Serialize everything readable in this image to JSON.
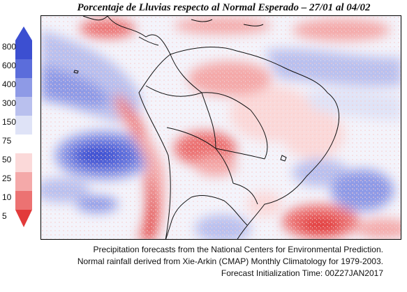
{
  "title": "Porcentaje de Lluvias respecto al Normal Esperado – 27/01 al 04/02",
  "legend": {
    "levels": [
      "800",
      "600",
      "400",
      "300",
      "150",
      "75",
      "50",
      "25",
      "10",
      "5"
    ],
    "colors": {
      "800": "#3c4fd1",
      "600": "#5b6ddb",
      "400": "#8e9ae6",
      "300": "#b9c0ee",
      "150": "#dfe3f7",
      "75": "#ffffff",
      "50": "#fbd9d9",
      "25": "#f4a9a9",
      "10": "#ec7272",
      "5": "#e23b3b"
    }
  },
  "credits": {
    "line1": "Precipitation forecasts from the National Centers for Environmental Prediction.",
    "line2": "Normal rainfall derived from Xie-Arkin (CMAP) Monthly Climatology for 1979-2003.",
    "line3": "Forecast Initialization Time: 00Z27JAN2017"
  }
}
